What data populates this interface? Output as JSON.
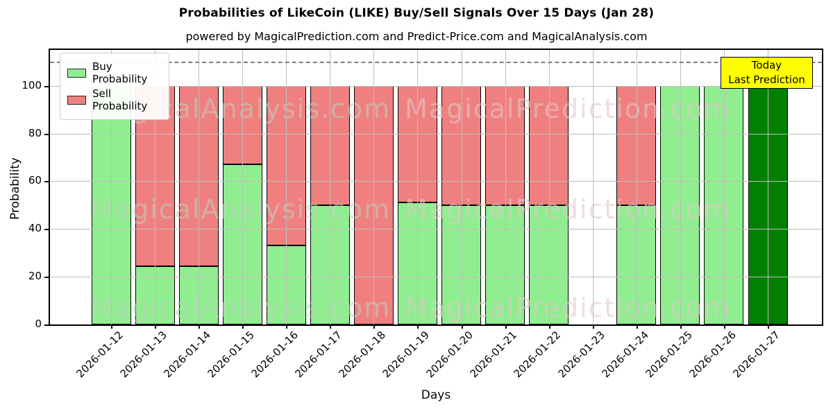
{
  "chart_data": {
    "type": "bar",
    "stacked": true,
    "title": "Probabilities of LikeCoin (LIKE) Buy/Sell Signals Over 15 Days (Jan 28)",
    "subtitle": "powered by MagicalPrediction.com and Predict-Price.com and MagicalAnalysis.com",
    "xlabel": "Days",
    "ylabel": "Probability",
    "categories": [
      "2026-01-12",
      "2026-01-13",
      "2026-01-14",
      "2026-01-15",
      "2026-01-16",
      "2026-01-17",
      "2026-01-18",
      "2026-01-19",
      "2026-01-20",
      "2026-01-21",
      "2026-01-22",
      "2026-01-23",
      "2026-01-24",
      "2026-01-25",
      "2026-01-26",
      "2026-01-27"
    ],
    "series": [
      {
        "name": "Buy Probability",
        "color": "#90ee90",
        "values": [
          100,
          24.5,
          24.5,
          67,
          33,
          50,
          0,
          51,
          50,
          50,
          50,
          0,
          50,
          100,
          100,
          100
        ]
      },
      {
        "name": "Sell Probability",
        "color": "#f08080",
        "values": [
          0,
          75.5,
          75.5,
          33,
          67,
          50,
          100,
          49,
          50,
          50,
          50,
          0,
          50,
          0,
          0,
          0
        ]
      }
    ],
    "bar_edge_color": "#000000",
    "last_bar_fill": "#008000",
    "ylim": [
      0,
      115
    ],
    "yticks": [
      0,
      20,
      40,
      60,
      80,
      100
    ],
    "grid": true,
    "dashed_line_y": 110,
    "legend_position": "upper-left"
  },
  "annotation_box": {
    "line1": "Today",
    "line2": "Last Prediction",
    "bg_color": "#ffff00"
  },
  "watermarks": {
    "left_text": "MagicalAnalysis.com",
    "right_text": "MagicalPrediction.com"
  }
}
